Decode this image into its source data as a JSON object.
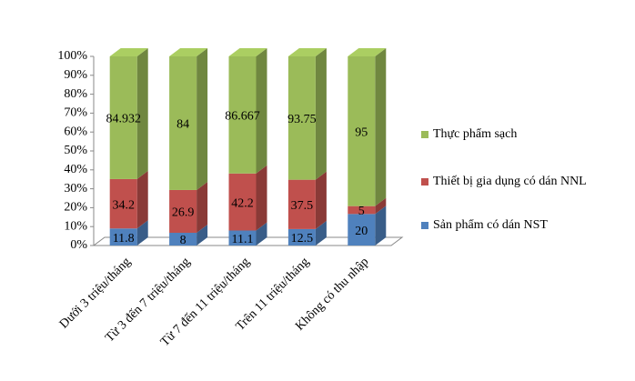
{
  "chart_data": {
    "type": "bar",
    "stacked": "percent",
    "categories": [
      "Dưới 3 triệu/tháng",
      "Từ 3 đến 7 triệu/tháng",
      "Từ 7 đến 11 triệu/tháng",
      "Trên 11 triệu/tháng",
      "Không có thu nhập"
    ],
    "series": [
      {
        "name": "Sản phẩm có dán NST",
        "color": "#4f81bd",
        "values": [
          11.8,
          8,
          11.1,
          12.5,
          20
        ]
      },
      {
        "name": "Thiết bị gia dụng có dán NNL",
        "color": "#c0504d",
        "values": [
          34.2,
          26.9,
          42.2,
          37.5,
          5
        ]
      },
      {
        "name": "Thực phẩm sạch",
        "color": "#9bbb59",
        "values": [
          84.932,
          84,
          86.667,
          93.75,
          95
        ]
      }
    ],
    "ylim": [
      0,
      100
    ],
    "yticks": [
      {
        "value": 0,
        "label": "0%"
      },
      {
        "value": 10,
        "label": "10%"
      },
      {
        "value": 20,
        "label": "20%"
      },
      {
        "value": 30,
        "label": "30%"
      },
      {
        "value": 40,
        "label": "40%"
      },
      {
        "value": 50,
        "label": "50%"
      },
      {
        "value": 60,
        "label": "60%"
      },
      {
        "value": 70,
        "label": "70%"
      },
      {
        "value": 80,
        "label": "80%"
      },
      {
        "value": 90,
        "label": "90%"
      },
      {
        "value": 100,
        "label": "100%"
      }
    ],
    "legend": "right"
  }
}
